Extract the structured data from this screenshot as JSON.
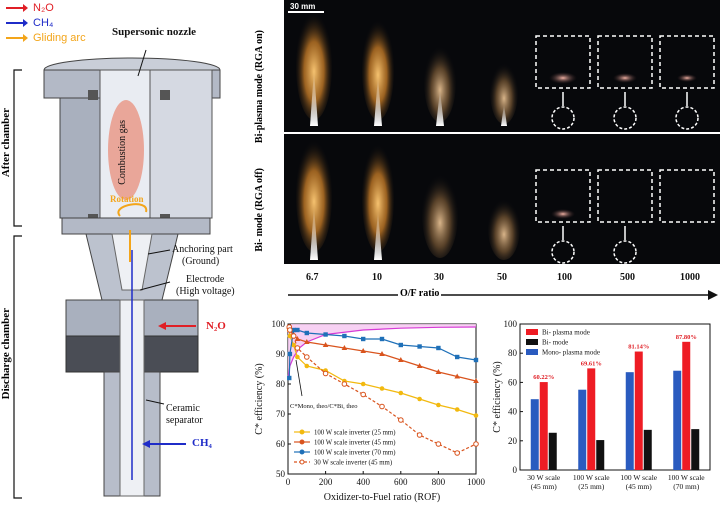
{
  "legend": {
    "n2o": "N₂O",
    "ch4": "CH₄",
    "arc": "Gliding arc",
    "colors": {
      "n2o": "#e01f26",
      "ch4": "#1f2cc8",
      "arc": "#f3a51a"
    }
  },
  "schematic": {
    "supersonic_nozzle": "Supersonic nozzle",
    "combustion_gas": "Combustion gas",
    "rotation": "Rotation",
    "anchoring_part": "Anchoring part",
    "ground": "(Ground)",
    "electrode": "Electrode",
    "high_voltage": "(High voltage)",
    "n2o_inlet": "N₂O",
    "ceramic": "Ceramic",
    "separator": "separator",
    "ch4_inlet": "CH₄",
    "after_chamber": "After chamber",
    "discharge_chamber": "Discharge chamber"
  },
  "photos": {
    "scale_bar": "30 mm",
    "row1_label_a": "Bi-plasma mode",
    "row1_label_b": "(RGA on)",
    "row2_label_a": "Bi- mode",
    "row2_label_b": "(RGA off)",
    "ratios": [
      "6.7",
      "10",
      "30",
      "50",
      "100",
      "500",
      "1000"
    ],
    "axis_label": "O/F ratio"
  },
  "chart_data": [
    {
      "type": "line",
      "xlabel": "Oxidizer-to-Fuel ratio (ROF)",
      "ylabel": "C* efficiency (%)",
      "xlim": [
        0,
        1000
      ],
      "ylim": [
        50,
        100
      ],
      "xticks": [
        0,
        200,
        400,
        600,
        800,
        1000
      ],
      "yticks": [
        50,
        60,
        70,
        80,
        90,
        100
      ],
      "annotation": "C*Mono, theo/C*Bi, theo",
      "series": [
        {
          "name": "100 W scale inverter (25 mm)",
          "color": "#f2b90f",
          "marker": "circle",
          "dashed": false,
          "x": [
            6.7,
            10,
            30,
            50,
            100,
            200,
            300,
            400,
            500,
            600,
            700,
            800,
            900,
            1000
          ],
          "y": [
            98,
            96,
            93,
            89,
            86,
            84.5,
            81,
            80,
            78.5,
            77,
            75,
            73,
            71.5,
            69.5
          ]
        },
        {
          "name": "100 W scale inverter (45 mm)",
          "color": "#d9541e",
          "marker": "triangle",
          "dashed": false,
          "x": [
            6.7,
            10,
            30,
            50,
            100,
            200,
            300,
            400,
            500,
            600,
            700,
            800,
            900,
            1000
          ],
          "y": [
            99,
            98,
            96.5,
            95,
            94,
            93,
            92,
            91,
            90,
            88,
            86,
            84,
            82.5,
            81
          ]
        },
        {
          "name": "100 W scale inverter (70 mm)",
          "color": "#1f70b8",
          "marker": "square",
          "dashed": false,
          "x": [
            6.7,
            10,
            30,
            50,
            100,
            200,
            300,
            400,
            500,
            600,
            700,
            800,
            900,
            1000
          ],
          "y": [
            82,
            90,
            98,
            98,
            97,
            96.5,
            96,
            95,
            95,
            93,
            92.5,
            92,
            89,
            88
          ]
        },
        {
          "name": "30 W scale inverter (45 mm)",
          "color": "#d9541e",
          "marker": "circle-open",
          "dashed": true,
          "x": [
            6.7,
            10,
            30,
            50,
            100,
            200,
            300,
            400,
            500,
            600,
            700,
            800,
            900,
            1000
          ],
          "y": [
            99,
            98,
            96,
            92,
            89,
            83.5,
            80,
            76.5,
            72.5,
            68,
            63,
            60,
            57,
            60
          ]
        }
      ],
      "theory_curve": {
        "color": "#d63bd6",
        "x": [
          0,
          10,
          30,
          60,
          100,
          200,
          400,
          600,
          800,
          1000
        ],
        "y": [
          82,
          86,
          89,
          92,
          94,
          96.5,
          98,
          98.6,
          98.9,
          99
        ]
      }
    },
    {
      "type": "bar",
      "ylabel": "C* efficiency (%)",
      "ylim": [
        0,
        100
      ],
      "yticks": [
        0,
        20,
        40,
        60,
        80,
        100
      ],
      "categories": [
        {
          "line1": "30 W scale",
          "line2": "(45 mm)"
        },
        {
          "line1": "100 W scale",
          "line2": "(25 mm)"
        },
        {
          "line1": "100 W scale",
          "line2": "(45 mm)"
        },
        {
          "line1": "100 W scale",
          "line2": "(70 mm)"
        }
      ],
      "series": [
        {
          "name": "Mono- plasma mode",
          "color": "#2a5bbf",
          "values": [
            48.5,
            55,
            67,
            68
          ]
        },
        {
          "name": "Bi- plasma mode",
          "color": "#ee1c24",
          "values": [
            60.22,
            69.61,
            81.14,
            87.8
          ]
        },
        {
          "name": "Bi- mode",
          "color": "#111111",
          "values": [
            25.5,
            20.5,
            27.5,
            28
          ]
        }
      ],
      "bar_labels": [
        "60.22%",
        "69.61%",
        "81.14%",
        "87.80%"
      ],
      "bar_label_color": "#e01f26"
    }
  ]
}
